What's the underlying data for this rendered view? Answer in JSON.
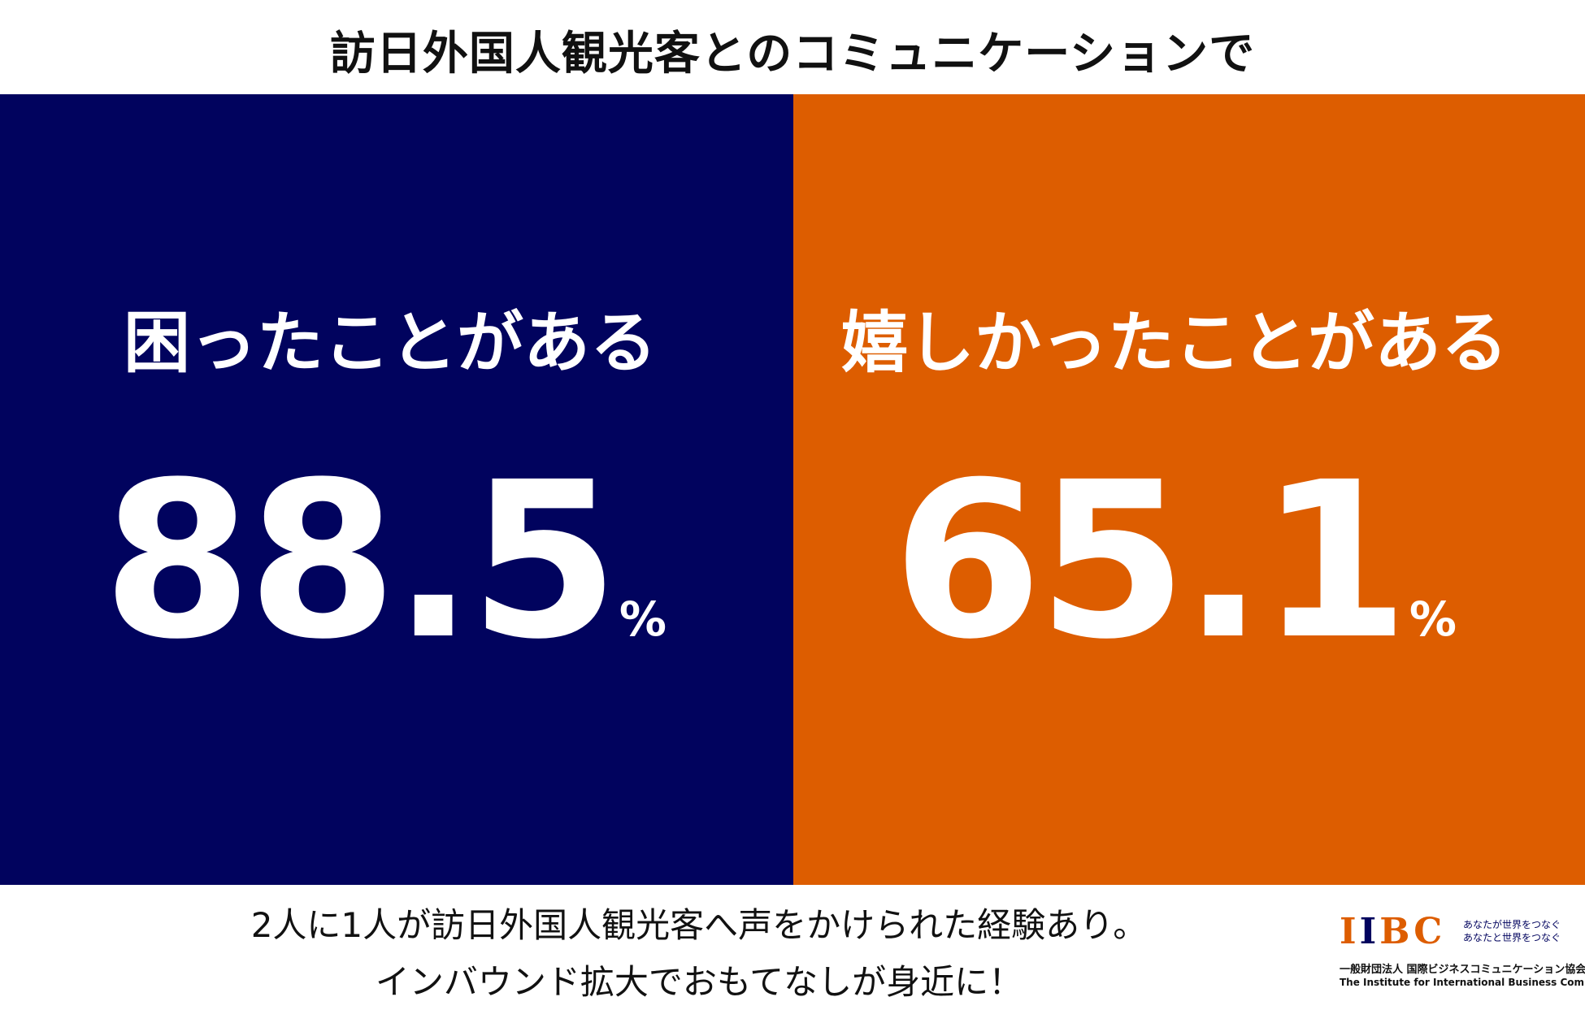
{
  "header": {
    "title": "訪日外国人観光客とのコミュニケーションで"
  },
  "panels": [
    {
      "label": "困ったことがある",
      "value": "88.5",
      "unit": "%",
      "color": "#01035e"
    },
    {
      "label": "嬉しかったことがある",
      "value": "65.1",
      "unit": "%",
      "color": "#dd5d00"
    }
  ],
  "caption": {
    "line1": "2人に1人が訪日外国人観光客へ声をかけられた経験あり。",
    "line2": "インバウンド拡大でおもてなしが身近に！"
  },
  "logo": {
    "mark_prefix": "I",
    "mark_accent": "I",
    "mark_suffix": "BC",
    "tagline_1": "あなたが世界をつなぐ",
    "tagline_2": "あなたと世界をつなぐ",
    "org_jp": "一般財団法人 国際ビジネスコミュニケーション協会",
    "org_en": "The Institute for International Business Communication"
  }
}
